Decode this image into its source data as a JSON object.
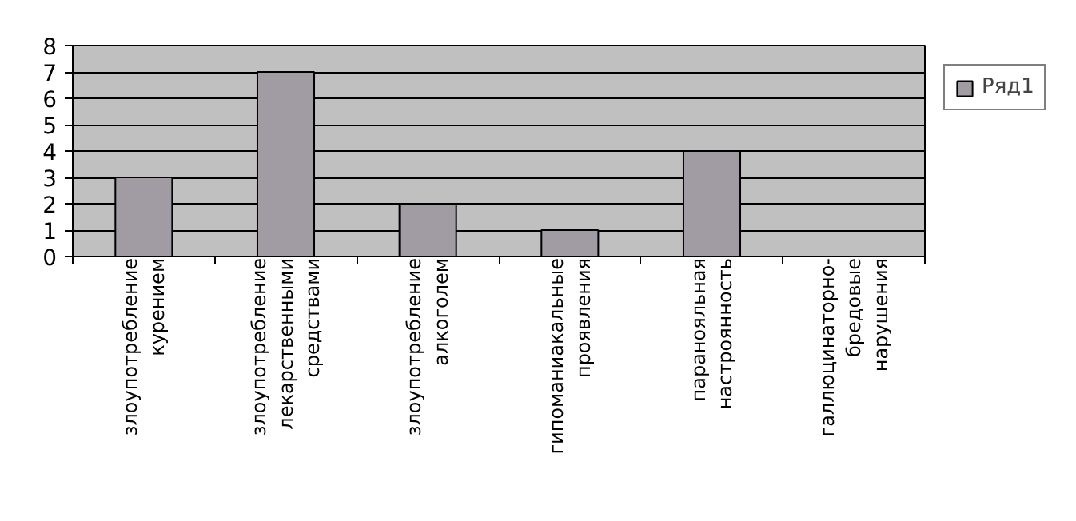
{
  "chart_data": {
    "type": "bar",
    "categories": [
      "злоупотребление курением",
      "злоупотребление лекарственными средствами",
      "злоупотребление алкоголем",
      "гипоманиакальные проявления",
      "паранояльная настроянность",
      "галлюцинаторно-бредовые нарушения"
    ],
    "series": [
      {
        "name": "Ряд1",
        "color": "#a19ba3",
        "values": [
          3,
          7,
          2,
          1,
          4,
          0
        ]
      }
    ],
    "ylim": [
      0,
      8
    ],
    "yticks": [
      0,
      1,
      2,
      3,
      4,
      5,
      6,
      7,
      8
    ],
    "grid": "y",
    "legend": "right"
  }
}
